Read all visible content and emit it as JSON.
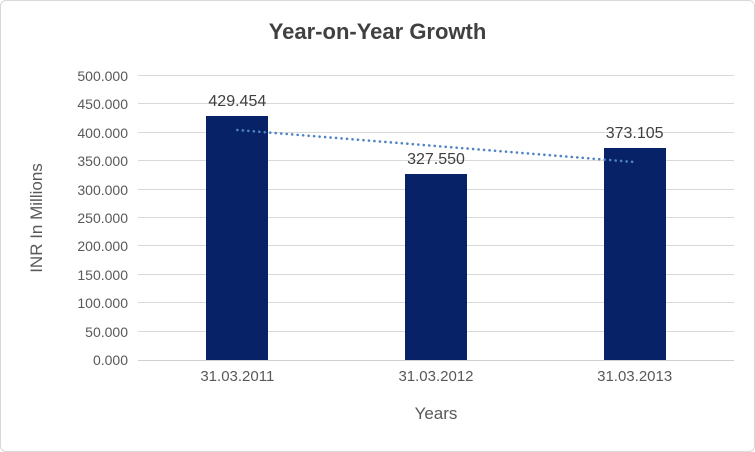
{
  "chart_data": {
    "type": "bar",
    "title": "Year-on-Year Growth",
    "xlabel": "Years",
    "ylabel": "INR In Millions",
    "categories": [
      "31.03.2011",
      "31.03.2012",
      "31.03.2013"
    ],
    "values": [
      429.454,
      327.55,
      373.105
    ],
    "value_labels": [
      "429.454",
      "327.550",
      "373.105"
    ],
    "ylim": [
      0,
      500
    ],
    "ytick_step": 50,
    "ytick_labels": [
      "0.000",
      "50.000",
      "100.000",
      "150.000",
      "200.000",
      "250.000",
      "300.000",
      "350.000",
      "400.000",
      "450.000",
      "500.000"
    ],
    "grid": "horizontal",
    "legend": "none",
    "trendline": {
      "type": "linear",
      "dash": "dotted",
      "endpoint_values": [
        404.9,
        348.5
      ]
    },
    "colors": {
      "bar": "#072266",
      "trendline": "#4e82c2",
      "gridline": "#d9d9d9",
      "axis_line": "#cfcfcf",
      "title_text": "#404040",
      "tick_text": "#595959",
      "data_label_text": "#404040",
      "border": "#d9d9d9"
    }
  }
}
